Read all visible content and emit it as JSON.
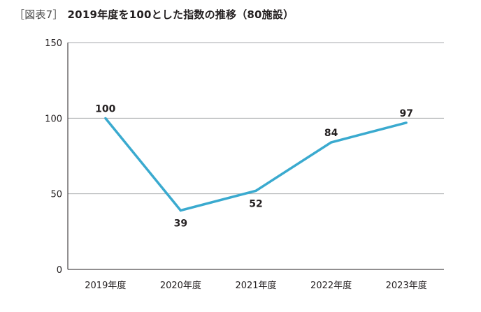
{
  "header": {
    "figure_tag": "［図表7］",
    "title": "2019年度を100とした指数の推移（80施設）"
  },
  "chart_data": {
    "type": "line",
    "title": "2019年度を100とした指数の推移（80施設）",
    "categories": [
      "2019年度",
      "2020年度",
      "2021年度",
      "2022年度",
      "2023年度"
    ],
    "series": [
      {
        "values": [
          100,
          39,
          52,
          84,
          97
        ],
        "color": "#3aaacf"
      }
    ],
    "data_labels": [
      "100",
      "39",
      "52",
      "84",
      "97"
    ],
    "data_label_positions": [
      "above",
      "below",
      "below",
      "above",
      "above"
    ],
    "ylim": [
      0,
      150
    ],
    "yticks": [
      0,
      50,
      100,
      150
    ],
    "ytick_labels": [
      "0",
      "50",
      "100",
      "150"
    ],
    "grid": "horizontal",
    "xlabel": "",
    "ylabel": "",
    "colors": {
      "line": "#3aaacf",
      "grid": "#a7a9ac",
      "axis": "#231f20",
      "text": "#231f20"
    }
  }
}
